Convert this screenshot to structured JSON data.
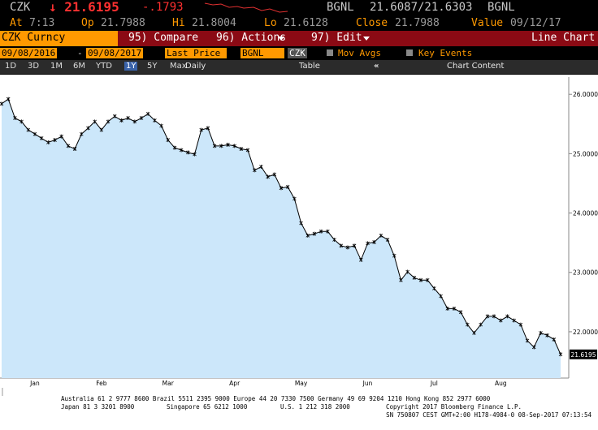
{
  "header": {
    "ticker": "CZK",
    "price": "↓ 21.6195",
    "change": "-.1793",
    "source": "BGNL",
    "bid_ask": "21.6087/21.6303",
    "source2": "BGNL",
    "stats": [
      {
        "label": "At",
        "value": "7:13"
      },
      {
        "label": "Op",
        "value": "21.7988"
      },
      {
        "label": "Hi",
        "value": "21.8004"
      },
      {
        "label": "Lo",
        "value": "21.6128"
      },
      {
        "label": "Close",
        "value": "21.7988"
      },
      {
        "label": "Value",
        "value": "09/12/17"
      }
    ]
  },
  "menu": {
    "security": "CZK Curncy",
    "compare": "95) Compare",
    "actions": "96) Actions",
    "edit": "97) Edit",
    "view": "Line Chart"
  },
  "toolbar": {
    "start_date": "09/08/2016",
    "separator": "-",
    "end_date": "09/08/2017",
    "field": "Last Price",
    "pricing_source": "BGNL",
    "currency": "CZK",
    "mov_avgs": "Mov Avgs",
    "key_events": "Key Events",
    "periods": [
      "1D",
      "3D",
      "1M",
      "6M",
      "YTD",
      "1Y",
      "5Y",
      "Max"
    ],
    "frequency": "Daily",
    "table": "Table",
    "collapse": "«",
    "chart_content": "Chart Content"
  },
  "chart_data": {
    "type": "line",
    "color": "#000000",
    "area_color": "#cce7fa",
    "year_label": "2017",
    "categories": [
      null,
      null,
      null,
      null,
      null,
      "Jan",
      null,
      null,
      null,
      null,
      null,
      null,
      null,
      null,
      null,
      "Feb",
      null,
      null,
      null,
      null,
      null,
      null,
      null,
      null,
      null,
      "Mar",
      null,
      null,
      null,
      null,
      null,
      null,
      null,
      null,
      null,
      "Apr",
      null,
      null,
      null,
      null,
      null,
      null,
      null,
      null,
      null,
      "May",
      null,
      null,
      null,
      null,
      null,
      null,
      null,
      null,
      null,
      "Jun",
      null,
      null,
      null,
      null,
      null,
      null,
      null,
      null,
      null,
      "Jul",
      null,
      null,
      null,
      null,
      null,
      null,
      null,
      null,
      null,
      "Aug",
      null,
      null,
      null,
      null,
      null,
      null,
      null,
      null,
      null
    ],
    "values": [
      25.84,
      25.92,
      25.6,
      25.54,
      25.4,
      25.33,
      25.26,
      25.19,
      25.23,
      25.29,
      25.13,
      25.08,
      25.33,
      25.43,
      25.54,
      25.4,
      25.54,
      25.63,
      25.56,
      25.6,
      25.54,
      25.6,
      25.67,
      25.56,
      25.47,
      25.23,
      25.1,
      25.06,
      25.02,
      24.99,
      25.4,
      25.43,
      25.13,
      25.13,
      25.15,
      25.13,
      25.08,
      25.06,
      24.72,
      24.78,
      24.61,
      24.65,
      24.42,
      24.44,
      24.24,
      23.83,
      23.62,
      23.65,
      23.69,
      23.69,
      23.55,
      23.45,
      23.42,
      23.45,
      23.21,
      23.49,
      23.51,
      23.62,
      23.55,
      23.28,
      22.87,
      23.01,
      22.91,
      22.87,
      22.87,
      22.73,
      22.6,
      22.39,
      22.39,
      22.33,
      22.12,
      21.98,
      22.12,
      22.26,
      22.26,
      22.19,
      22.26,
      22.19,
      22.12,
      21.85,
      21.74,
      21.98,
      21.94,
      21.87,
      21.6195
    ],
    "ylim": [
      21.22,
      26.29
    ],
    "yticks": [
      {
        "value": 22,
        "label": "22.0000"
      },
      {
        "value": 23,
        "label": "23.0000"
      },
      {
        "value": 24,
        "label": "24.0000"
      },
      {
        "value": 25,
        "label": "25.0000"
      },
      {
        "value": 26,
        "label": "26.0000"
      }
    ],
    "grid": false
  },
  "footer": {
    "line1": "Australia 61 2 9777 8600 Brazil 5511 2395 9000 Europe 44 20 7330 7500 Germany 49 69 9204 1210 Hong Kong 852 2977 6000",
    "japan": "Japan 81 3 3201 8900",
    "singapore": "Singapore 65 6212 1000",
    "us": "U.S. 1 212 318 2000",
    "copyright": "Copyright 2017 Bloomberg Finance L.P.",
    "line3": "SN 750807 CEST  GMT+2:00 H178-4984-0 08-Sep-2017 07:13:54"
  }
}
